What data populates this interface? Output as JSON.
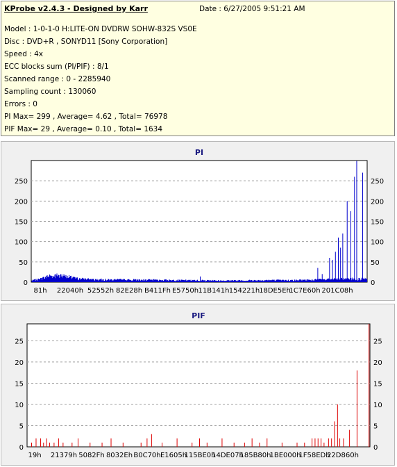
{
  "header": {
    "app_title": "KProbe v2.4.3 - Designed by Karr",
    "date_text": "Date : 6/27/2005 9:51:21 AM",
    "lines": [
      "Model : 1-0-1-0 H:LITE-ON DVDRW SOHW-832S  VS0E",
      "Disc : DVD+R , SONYD11 [Sony Corporation]",
      "Speed : 4x",
      "ECC blocks sum (PI/PIF) : 8/1",
      "Scanned range : 0 - 2285940",
      "Sampling count : 130060",
      "Errors : 0",
      "PI Max= 299 , Average= 4.62 , Total= 76978",
      "PIF Max= 29 , Average= 0.10 , Total= 1634"
    ]
  },
  "colors": {
    "pi_series": "#0000cc",
    "pif_series": "#dd0000",
    "plot_bg": "#ffffff",
    "grid": "#a0a0a0"
  },
  "chart_data": [
    {
      "type": "bar",
      "title": "PI",
      "x_tick_labels": [
        "81h",
        "22040h",
        "52552h",
        "82E28h",
        "B411Fh",
        "E5750h",
        "11B141h",
        "154221h",
        "18DE5Eh",
        "1C7E60h",
        "201C08h"
      ],
      "y_ticks": [
        0,
        50,
        100,
        150,
        200,
        250
      ],
      "ylim": [
        0,
        300
      ],
      "xlim": [
        0,
        2285940
      ],
      "grid": true,
      "baseline_profile": [
        [
          0,
          4
        ],
        [
          60000,
          8
        ],
        [
          120000,
          16
        ],
        [
          200000,
          18
        ],
        [
          300000,
          10
        ],
        [
          400000,
          7
        ],
        [
          700000,
          6
        ],
        [
          1000000,
          5
        ],
        [
          1300000,
          4
        ],
        [
          1600000,
          5
        ],
        [
          1800000,
          5
        ],
        [
          2000000,
          7
        ],
        [
          2100000,
          8
        ],
        [
          2200000,
          9
        ],
        [
          2285940,
          8
        ]
      ],
      "spikes": [
        [
          1150000,
          14
        ],
        [
          1950000,
          35
        ],
        [
          1980000,
          20
        ],
        [
          2030000,
          60
        ],
        [
          2050000,
          55
        ],
        [
          2070000,
          75
        ],
        [
          2090000,
          110
        ],
        [
          2105000,
          85
        ],
        [
          2120000,
          120
        ],
        [
          2150000,
          200
        ],
        [
          2175000,
          175
        ],
        [
          2200000,
          260
        ],
        [
          2215000,
          299
        ],
        [
          2255000,
          270
        ]
      ]
    },
    {
      "type": "bar",
      "title": "PIF",
      "x_tick_labels": [
        "19h",
        "21379h",
        "5082Fh",
        "8032Eh",
        "B0C70h",
        "E1605h",
        "115BE0h",
        "14DE07h",
        "185B80h",
        "1BE000h",
        "1F58EDh",
        "22D860h"
      ],
      "y_ticks": [
        0,
        5,
        10,
        15,
        20,
        25
      ],
      "ylim": [
        0,
        29
      ],
      "xlim": [
        0,
        2285940
      ],
      "grid": true,
      "spikes": [
        [
          30000,
          1
        ],
        [
          60000,
          2
        ],
        [
          90000,
          2
        ],
        [
          110000,
          1
        ],
        [
          130000,
          2
        ],
        [
          150000,
          1
        ],
        [
          180000,
          1
        ],
        [
          210000,
          2
        ],
        [
          240000,
          1
        ],
        [
          300000,
          1
        ],
        [
          340000,
          2
        ],
        [
          420000,
          1
        ],
        [
          500000,
          1
        ],
        [
          560000,
          2
        ],
        [
          640000,
          1
        ],
        [
          760000,
          1
        ],
        [
          800000,
          2
        ],
        [
          830000,
          3
        ],
        [
          900000,
          1
        ],
        [
          1000000,
          2
        ],
        [
          1100000,
          1
        ],
        [
          1150000,
          2
        ],
        [
          1200000,
          1
        ],
        [
          1300000,
          2
        ],
        [
          1380000,
          1
        ],
        [
          1450000,
          1
        ],
        [
          1500000,
          2
        ],
        [
          1550000,
          1
        ],
        [
          1600000,
          2
        ],
        [
          1700000,
          1
        ],
        [
          1800000,
          1
        ],
        [
          1850000,
          1
        ],
        [
          1900000,
          2
        ],
        [
          1920000,
          2
        ],
        [
          1940000,
          2
        ],
        [
          1960000,
          2
        ],
        [
          1980000,
          1
        ],
        [
          2010000,
          2
        ],
        [
          2030000,
          2
        ],
        [
          2050000,
          6
        ],
        [
          2070000,
          10
        ],
        [
          2085000,
          2
        ],
        [
          2110000,
          2
        ],
        [
          2150000,
          4
        ],
        [
          2200000,
          18
        ],
        [
          2280000,
          29
        ]
      ]
    }
  ]
}
